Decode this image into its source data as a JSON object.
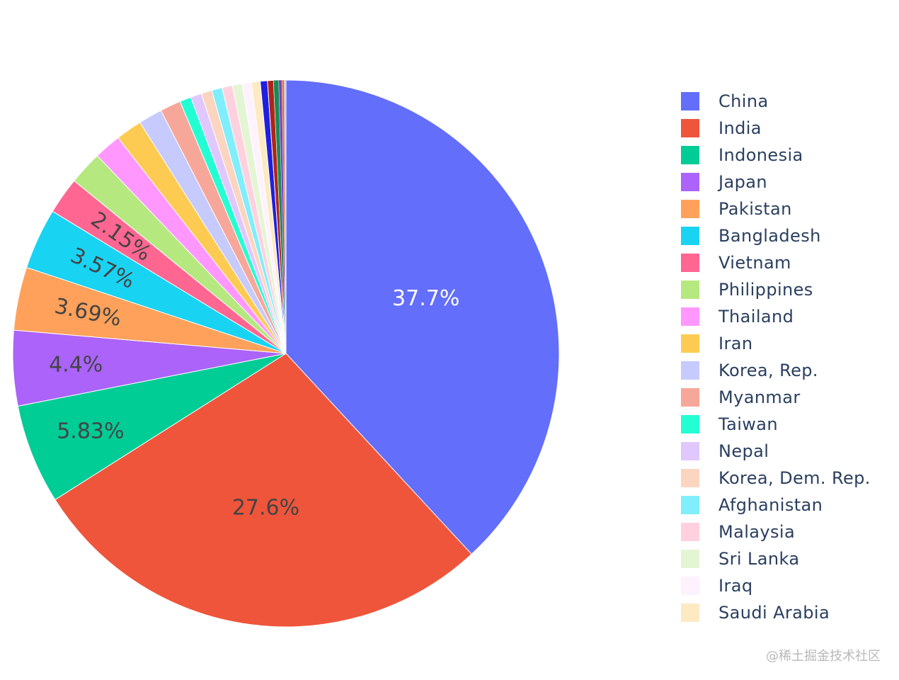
{
  "chart_data": {
    "type": "pie",
    "title": "",
    "direction": "clockwise",
    "start": "12 o'clock",
    "show_labels_above_percent": 2,
    "slices": [
      {
        "label": "China",
        "value": 37.7,
        "text": "37.7%",
        "color": "#636efa"
      },
      {
        "label": "India",
        "value": 27.6,
        "text": "27.6%",
        "color": "#ef553b"
      },
      {
        "label": "Indonesia",
        "value": 5.83,
        "text": "5.83%",
        "color": "#00cc96"
      },
      {
        "label": "Japan",
        "value": 4.4,
        "text": "4.4%",
        "color": "#ab63fa"
      },
      {
        "label": "Pakistan",
        "value": 3.69,
        "text": "3.69%",
        "color": "#ffa15a"
      },
      {
        "label": "Bangladesh",
        "value": 3.57,
        "text": "3.57%",
        "color": "#19d3f3"
      },
      {
        "label": "Vietnam",
        "value": 2.15,
        "text": "2.15%",
        "color": "#ff6692"
      },
      {
        "label": "Philippines",
        "value": 1.97,
        "color": "#b6e880"
      },
      {
        "label": "Thailand",
        "value": 1.58,
        "color": "#ff97ff"
      },
      {
        "label": "Iran",
        "value": 1.54,
        "color": "#fecb52"
      },
      {
        "label": "Korea, Rep.",
        "value": 1.39,
        "color": "#c6cafd"
      },
      {
        "label": "Myanmar",
        "value": 1.22,
        "color": "#f7a799"
      },
      {
        "label": "Taiwan",
        "value": 0.66,
        "color": "#22ffd3"
      },
      {
        "label": "Nepal",
        "value": 0.65,
        "color": "#e0c8ff"
      },
      {
        "label": "Korea, Dem. Rep.",
        "value": 0.63,
        "color": "#fcd5c1"
      },
      {
        "label": "Afghanistan",
        "value": 0.61,
        "color": "#80eefc"
      },
      {
        "label": "Malaysia",
        "value": 0.61,
        "color": "#ffd1de"
      },
      {
        "label": "Sri Lanka",
        "value": 0.57,
        "color": "#e4f5d4"
      },
      {
        "label": "Iraq",
        "value": 0.54,
        "color": "#fff2ff"
      },
      {
        "label": "Saudi Arabia",
        "value": 0.51,
        "color": "#fdeac2"
      },
      {
        "value": 0.42,
        "color": "#1f1fe0"
      },
      {
        "value": 0.35,
        "color": "#b02418"
      },
      {
        "value": 0.3,
        "color": "#1a8a55"
      },
      {
        "value": 0.18,
        "color": "#7a3ec4"
      },
      {
        "value": 0.14,
        "color": "#d6793a"
      },
      {
        "value": 0.1,
        "color": "#c9c9e8"
      }
    ],
    "legend": {
      "placement": "right"
    }
  },
  "watermark": "@稀土掘金技术社区"
}
